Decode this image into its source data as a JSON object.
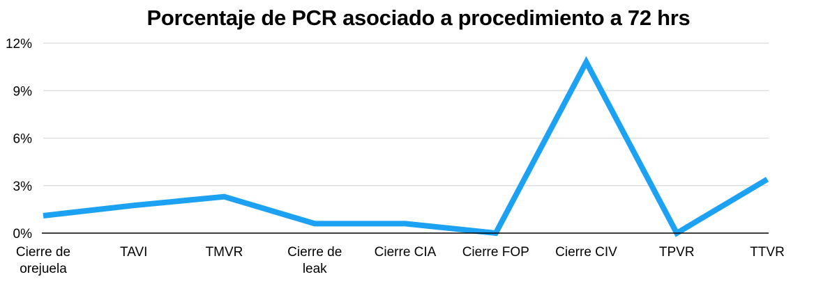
{
  "chart_data": {
    "type": "line",
    "title": "Porcentaje de PCR asociado a procedimiento a 72 hrs",
    "categories": [
      [
        "Cierre de",
        "orejuela"
      ],
      [
        "TAVI"
      ],
      [
        "TMVR"
      ],
      [
        "Cierre de",
        "leak"
      ],
      [
        "Cierre CIA"
      ],
      [
        "Cierre FOP"
      ],
      [
        "Cierre CIV"
      ],
      [
        "TPVR"
      ],
      [
        "TTVR"
      ]
    ],
    "series": [
      {
        "values": [
          1.1,
          1.75,
          2.3,
          0.6,
          0.6,
          0.0,
          10.8,
          0.0,
          3.4
        ],
        "color": "#1da1f2"
      }
    ],
    "ylim": [
      0,
      12
    ],
    "yticks": [
      0,
      3,
      6,
      9,
      12
    ],
    "ytick_labels": [
      "0%",
      "3%",
      "6%",
      "9%",
      "12%"
    ],
    "grid": true,
    "legend": "none",
    "colors": {
      "grid": "#d9d9d9",
      "axis": "#000000",
      "text": "#000000"
    }
  }
}
